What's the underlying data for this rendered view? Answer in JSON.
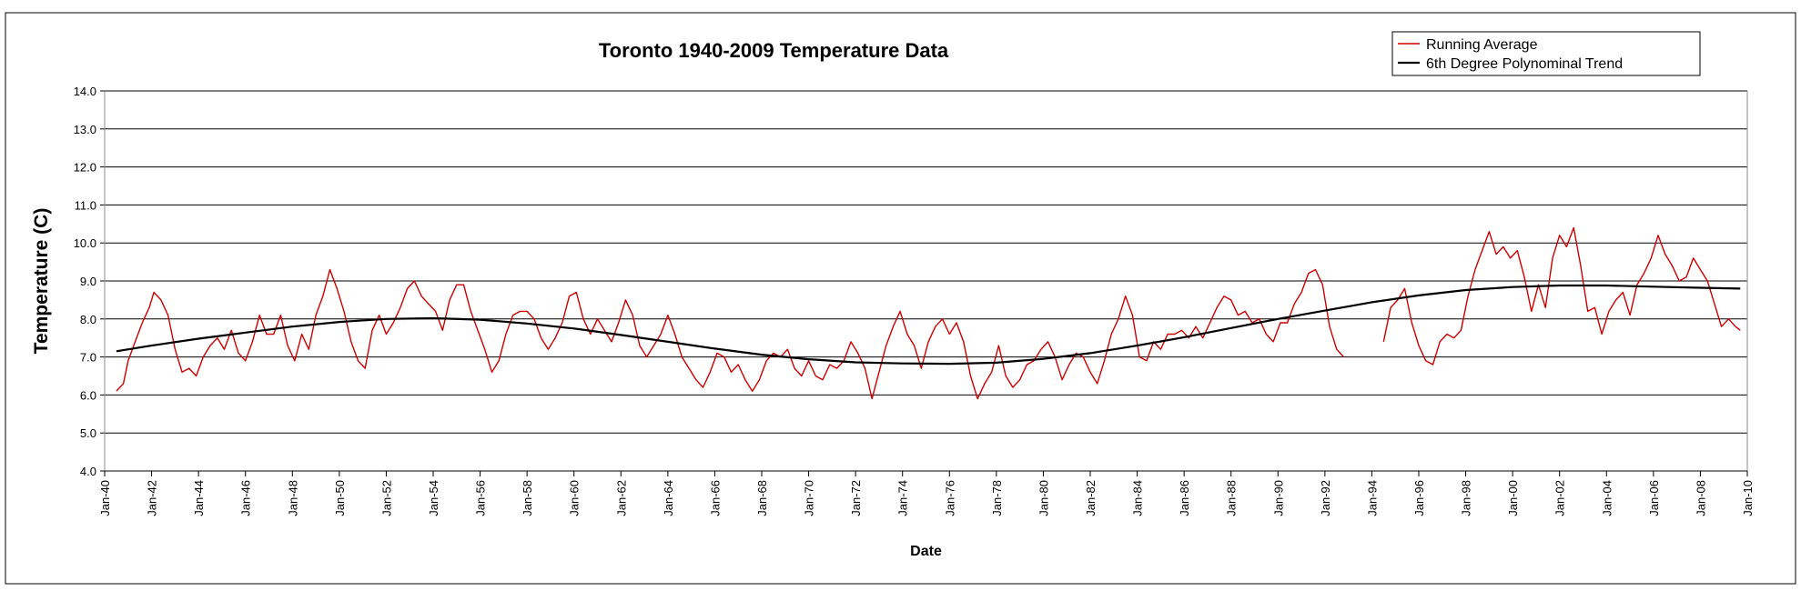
{
  "chart_data": {
    "type": "line",
    "title": "Toronto 1940-2009 Temperature Data",
    "xlabel": "Date",
    "ylabel": "Temperature (C)",
    "ylim": [
      4.0,
      14.0
    ],
    "ytick_step": 1.0,
    "yticks": [
      "4.0",
      "5.0",
      "6.0",
      "7.0",
      "8.0",
      "9.0",
      "10.0",
      "11.0",
      "12.0",
      "13.0",
      "14.0"
    ],
    "xlim": [
      1940,
      2010
    ],
    "xtick_step": 2,
    "xticks": [
      "Jan-40",
      "Jan-42",
      "Jan-44",
      "Jan-46",
      "Jan-48",
      "Jan-50",
      "Jan-52",
      "Jan-54",
      "Jan-56",
      "Jan-58",
      "Jan-60",
      "Jan-62",
      "Jan-64",
      "Jan-66",
      "Jan-68",
      "Jan-70",
      "Jan-72",
      "Jan-74",
      "Jan-76",
      "Jan-78",
      "Jan-80",
      "Jan-82",
      "Jan-84",
      "Jan-86",
      "Jan-88",
      "Jan-90",
      "Jan-92",
      "Jan-94",
      "Jan-96",
      "Jan-98",
      "Jan-00",
      "Jan-02",
      "Jan-04",
      "Jan-06",
      "Jan-08",
      "Jan-10"
    ],
    "grid": true,
    "legend_position": "top-right",
    "colors": {
      "running_average": "#CC0000",
      "trend": "#000000",
      "grid": "#000000",
      "plot_frame": "#8C8C8C",
      "outer_frame": "#000000"
    },
    "series": [
      {
        "name": "Running Average",
        "segments": [
          [
            [
              1940.5,
              6.1
            ],
            [
              1940.8,
              6.3
            ],
            [
              1941.0,
              6.9
            ],
            [
              1941.3,
              7.4
            ],
            [
              1941.6,
              7.9
            ],
            [
              1941.9,
              8.3
            ],
            [
              1942.1,
              8.7
            ],
            [
              1942.4,
              8.5
            ],
            [
              1942.7,
              8.1
            ],
            [
              1943.0,
              7.2
            ],
            [
              1943.3,
              6.6
            ],
            [
              1943.6,
              6.7
            ],
            [
              1943.9,
              6.5
            ],
            [
              1944.2,
              7.0
            ],
            [
              1944.5,
              7.3
            ],
            [
              1944.8,
              7.5
            ],
            [
              1945.1,
              7.2
            ],
            [
              1945.4,
              7.7
            ],
            [
              1945.7,
              7.1
            ],
            [
              1946.0,
              6.9
            ],
            [
              1946.3,
              7.4
            ],
            [
              1946.6,
              8.1
            ],
            [
              1946.9,
              7.6
            ],
            [
              1947.2,
              7.6
            ],
            [
              1947.5,
              8.1
            ],
            [
              1947.8,
              7.3
            ],
            [
              1948.1,
              6.9
            ],
            [
              1948.4,
              7.6
            ],
            [
              1948.7,
              7.2
            ],
            [
              1949.0,
              8.1
            ],
            [
              1949.3,
              8.6
            ],
            [
              1949.6,
              9.3
            ],
            [
              1949.9,
              8.8
            ],
            [
              1950.2,
              8.2
            ],
            [
              1950.5,
              7.4
            ],
            [
              1950.8,
              6.9
            ],
            [
              1951.1,
              6.7
            ],
            [
              1951.4,
              7.7
            ],
            [
              1951.7,
              8.1
            ],
            [
              1952.0,
              7.6
            ],
            [
              1952.3,
              7.9
            ],
            [
              1952.6,
              8.3
            ],
            [
              1952.9,
              8.8
            ],
            [
              1953.2,
              9.0
            ],
            [
              1953.5,
              8.6
            ],
            [
              1953.8,
              8.4
            ],
            [
              1954.1,
              8.2
            ],
            [
              1954.4,
              7.7
            ],
            [
              1954.7,
              8.5
            ],
            [
              1955.0,
              8.9
            ],
            [
              1955.3,
              8.9
            ],
            [
              1955.6,
              8.2
            ],
            [
              1955.9,
              7.7
            ],
            [
              1956.2,
              7.2
            ],
            [
              1956.5,
              6.6
            ],
            [
              1956.8,
              6.9
            ],
            [
              1957.1,
              7.6
            ],
            [
              1957.4,
              8.1
            ],
            [
              1957.7,
              8.2
            ],
            [
              1958.0,
              8.2
            ],
            [
              1958.3,
              8.0
            ],
            [
              1958.6,
              7.5
            ],
            [
              1958.9,
              7.2
            ],
            [
              1959.2,
              7.5
            ],
            [
              1959.5,
              7.9
            ],
            [
              1959.8,
              8.6
            ],
            [
              1960.1,
              8.7
            ],
            [
              1960.4,
              8.0
            ],
            [
              1960.7,
              7.6
            ],
            [
              1961.0,
              8.0
            ],
            [
              1961.3,
              7.7
            ],
            [
              1961.6,
              7.4
            ],
            [
              1961.9,
              7.9
            ],
            [
              1962.2,
              8.5
            ],
            [
              1962.5,
              8.1
            ],
            [
              1962.8,
              7.3
            ],
            [
              1963.1,
              7.0
            ],
            [
              1963.4,
              7.3
            ],
            [
              1963.7,
              7.6
            ],
            [
              1964.0,
              8.1
            ],
            [
              1964.3,
              7.6
            ],
            [
              1964.6,
              7.0
            ],
            [
              1964.9,
              6.7
            ],
            [
              1965.2,
              6.4
            ],
            [
              1965.5,
              6.2
            ],
            [
              1965.8,
              6.6
            ],
            [
              1966.1,
              7.1
            ],
            [
              1966.4,
              7.0
            ],
            [
              1966.7,
              6.6
            ],
            [
              1967.0,
              6.8
            ],
            [
              1967.3,
              6.4
            ],
            [
              1967.6,
              6.1
            ],
            [
              1967.9,
              6.4
            ],
            [
              1968.2,
              6.9
            ],
            [
              1968.5,
              7.1
            ],
            [
              1968.8,
              7.0
            ],
            [
              1969.1,
              7.2
            ],
            [
              1969.4,
              6.7
            ],
            [
              1969.7,
              6.5
            ],
            [
              1970.0,
              6.9
            ],
            [
              1970.3,
              6.5
            ],
            [
              1970.6,
              6.4
            ],
            [
              1970.9,
              6.8
            ],
            [
              1971.2,
              6.7
            ],
            [
              1971.5,
              6.9
            ],
            [
              1971.8,
              7.4
            ],
            [
              1972.1,
              7.1
            ],
            [
              1972.4,
              6.7
            ],
            [
              1972.7,
              5.9
            ],
            [
              1973.0,
              6.6
            ],
            [
              1973.3,
              7.3
            ],
            [
              1973.6,
              7.8
            ],
            [
              1973.9,
              8.2
            ],
            [
              1974.2,
              7.6
            ],
            [
              1974.5,
              7.3
            ],
            [
              1974.8,
              6.7
            ],
            [
              1975.1,
              7.4
            ],
            [
              1975.4,
              7.8
            ],
            [
              1975.7,
              8.0
            ],
            [
              1976.0,
              7.6
            ],
            [
              1976.3,
              7.9
            ],
            [
              1976.6,
              7.4
            ],
            [
              1976.9,
              6.5
            ],
            [
              1977.2,
              5.9
            ],
            [
              1977.5,
              6.3
            ],
            [
              1977.8,
              6.6
            ],
            [
              1978.1,
              7.3
            ],
            [
              1978.4,
              6.5
            ],
            [
              1978.7,
              6.2
            ],
            [
              1979.0,
              6.4
            ],
            [
              1979.3,
              6.8
            ],
            [
              1979.6,
              6.9
            ],
            [
              1979.9,
              7.2
            ],
            [
              1980.2,
              7.4
            ],
            [
              1980.5,
              7.0
            ],
            [
              1980.8,
              6.4
            ],
            [
              1981.1,
              6.8
            ],
            [
              1981.4,
              7.1
            ],
            [
              1981.7,
              7.0
            ],
            [
              1982.0,
              6.6
            ],
            [
              1982.3,
              6.3
            ],
            [
              1982.6,
              6.9
            ],
            [
              1982.9,
              7.6
            ],
            [
              1983.2,
              8.0
            ],
            [
              1983.5,
              8.6
            ],
            [
              1983.8,
              8.1
            ],
            [
              1984.1,
              7.0
            ],
            [
              1984.4,
              6.9
            ],
            [
              1984.7,
              7.4
            ],
            [
              1985.0,
              7.2
            ],
            [
              1985.3,
              7.6
            ],
            [
              1985.6,
              7.6
            ],
            [
              1985.9,
              7.7
            ],
            [
              1986.2,
              7.5
            ],
            [
              1986.5,
              7.8
            ],
            [
              1986.8,
              7.5
            ],
            [
              1987.1,
              7.9
            ],
            [
              1987.4,
              8.3
            ],
            [
              1987.7,
              8.6
            ],
            [
              1988.0,
              8.5
            ],
            [
              1988.3,
              8.1
            ],
            [
              1988.6,
              8.2
            ],
            [
              1988.9,
              7.9
            ],
            [
              1989.2,
              8.0
            ],
            [
              1989.5,
              7.6
            ],
            [
              1989.8,
              7.4
            ],
            [
              1990.1,
              7.9
            ],
            [
              1990.4,
              7.9
            ],
            [
              1990.7,
              8.4
            ],
            [
              1991.0,
              8.7
            ],
            [
              1991.3,
              9.2
            ],
            [
              1991.6,
              9.3
            ],
            [
              1991.9,
              8.9
            ],
            [
              1992.2,
              7.8
            ],
            [
              1992.5,
              7.2
            ],
            [
              1992.8,
              7.0
            ]
          ],
          [
            [
              1994.5,
              7.4
            ],
            [
              1994.8,
              8.3
            ],
            [
              1995.1,
              8.5
            ],
            [
              1995.4,
              8.8
            ],
            [
              1995.7,
              7.9
            ],
            [
              1996.0,
              7.3
            ],
            [
              1996.3,
              6.9
            ],
            [
              1996.6,
              6.8
            ],
            [
              1996.9,
              7.4
            ],
            [
              1997.2,
              7.6
            ],
            [
              1997.5,
              7.5
            ],
            [
              1997.8,
              7.7
            ],
            [
              1998.1,
              8.6
            ],
            [
              1998.4,
              9.3
            ],
            [
              1998.7,
              9.8
            ],
            [
              1999.0,
              10.3
            ],
            [
              1999.3,
              9.7
            ],
            [
              1999.6,
              9.9
            ],
            [
              1999.9,
              9.6
            ],
            [
              2000.2,
              9.8
            ],
            [
              2000.5,
              9.1
            ],
            [
              2000.8,
              8.2
            ],
            [
              2001.1,
              8.9
            ],
            [
              2001.4,
              8.3
            ],
            [
              2001.7,
              9.6
            ],
            [
              2002.0,
              10.2
            ],
            [
              2002.3,
              9.9
            ],
            [
              2002.6,
              10.4
            ],
            [
              2002.9,
              9.4
            ],
            [
              2003.2,
              8.2
            ],
            [
              2003.5,
              8.3
            ],
            [
              2003.8,
              7.6
            ],
            [
              2004.1,
              8.2
            ],
            [
              2004.4,
              8.5
            ],
            [
              2004.7,
              8.7
            ],
            [
              2005.0,
              8.1
            ],
            [
              2005.3,
              8.9
            ],
            [
              2005.6,
              9.2
            ],
            [
              2005.9,
              9.6
            ],
            [
              2006.2,
              10.2
            ],
            [
              2006.5,
              9.7
            ],
            [
              2006.8,
              9.4
            ],
            [
              2007.1,
              9.0
            ],
            [
              2007.4,
              9.1
            ],
            [
              2007.7,
              9.6
            ],
            [
              2008.0,
              9.3
            ],
            [
              2008.3,
              9.0
            ],
            [
              2008.6,
              8.4
            ],
            [
              2008.9,
              7.8
            ],
            [
              2009.2,
              8.0
            ],
            [
              2009.5,
              7.8
            ],
            [
              2009.7,
              7.7
            ]
          ]
        ]
      },
      {
        "name": "6th Degree Polynominal Trend",
        "points": [
          [
            1940.5,
            7.15
          ],
          [
            1942.0,
            7.3
          ],
          [
            1944.0,
            7.48
          ],
          [
            1946.0,
            7.64
          ],
          [
            1948.0,
            7.8
          ],
          [
            1950.0,
            7.92
          ],
          [
            1952.0,
            8.0
          ],
          [
            1954.0,
            8.02
          ],
          [
            1956.0,
            7.98
          ],
          [
            1958.0,
            7.88
          ],
          [
            1960.0,
            7.75
          ],
          [
            1962.0,
            7.58
          ],
          [
            1964.0,
            7.4
          ],
          [
            1966.0,
            7.22
          ],
          [
            1968.0,
            7.06
          ],
          [
            1970.0,
            6.94
          ],
          [
            1972.0,
            6.86
          ],
          [
            1974.0,
            6.83
          ],
          [
            1976.0,
            6.82
          ],
          [
            1978.0,
            6.85
          ],
          [
            1980.0,
            6.95
          ],
          [
            1982.0,
            7.1
          ],
          [
            1984.0,
            7.3
          ],
          [
            1986.0,
            7.52
          ],
          [
            1988.0,
            7.76
          ],
          [
            1990.0,
            8.0
          ],
          [
            1992.0,
            8.22
          ],
          [
            1994.0,
            8.44
          ],
          [
            1996.0,
            8.62
          ],
          [
            1998.0,
            8.76
          ],
          [
            2000.0,
            8.84
          ],
          [
            2002.0,
            8.88
          ],
          [
            2004.0,
            8.88
          ],
          [
            2006.0,
            8.85
          ],
          [
            2008.0,
            8.82
          ],
          [
            2009.7,
            8.8
          ]
        ]
      }
    ]
  }
}
